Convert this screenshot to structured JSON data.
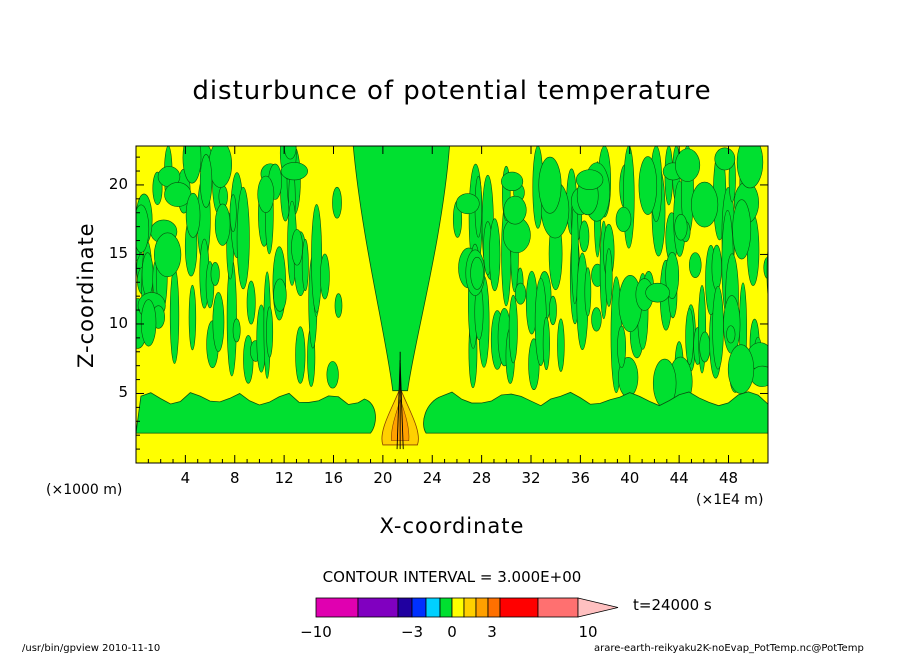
{
  "title": "disturbunce of potential temperature",
  "axes": {
    "xlabel": "X-coordinate",
    "ylabel": "Z-coordinate",
    "x_unit_left": "(×1000 m)",
    "x_unit_right": "(×1E4 m)"
  },
  "contour_interval": "CONTOUR INTERVAL = 3.000E+00",
  "colorbar": {
    "time_label": "t=24000 s",
    "tick_labels": [
      "−10",
      "−3",
      "0",
      "3",
      "10"
    ],
    "tick_values": [
      -10,
      -3,
      0,
      3,
      10
    ],
    "colors": [
      "#e000b0",
      "#8000c0",
      "#2000a0",
      "#0030ff",
      "#00d0ff",
      "#00e030",
      "#ffff00",
      "#ffd000",
      "#ffa000",
      "#ff7000",
      "#ff0000",
      "#ff7070",
      "#ffc0c0"
    ]
  },
  "footer": {
    "left": "/usr/bin/gpview  2010-11-10",
    "right": "arare-earth-reikyaku2K-noEvap_PotTemp.nc@PotTemp"
  },
  "chart_data": {
    "type": "heatmap",
    "title": "disturbunce of potential temperature",
    "xlabel": "X-coordinate",
    "ylabel": "Z-coordinate",
    "xlim": [
      0,
      51.2
    ],
    "ylim": [
      0,
      22.8
    ],
    "xticks": [
      4,
      8,
      12,
      16,
      20,
      24,
      28,
      32,
      36,
      40,
      44,
      48
    ],
    "yticks": [
      5,
      10,
      15,
      20
    ],
    "colors": {
      "near_zero_positive": "#ffff00",
      "near_zero_negative": "#00e030",
      "positive_3": "#ffd000",
      "positive_6": "#ffa000",
      "contour_line": "#000000"
    },
    "regions": [
      {
        "level": "yellow",
        "x": [
          0,
          51.2
        ],
        "z": [
          0,
          22.8
        ]
      },
      {
        "level": "green",
        "x": [
          0,
          51.2
        ],
        "z": [
          2.1,
          5.1
        ]
      },
      {
        "level": "green",
        "x": [
          17.5,
          25.5
        ],
        "z": [
          4.5,
          22.8
        ]
      },
      {
        "level": "orange",
        "x": [
          20.5,
          22.3
        ],
        "z": [
          1.2,
          4.5
        ]
      }
    ]
  }
}
